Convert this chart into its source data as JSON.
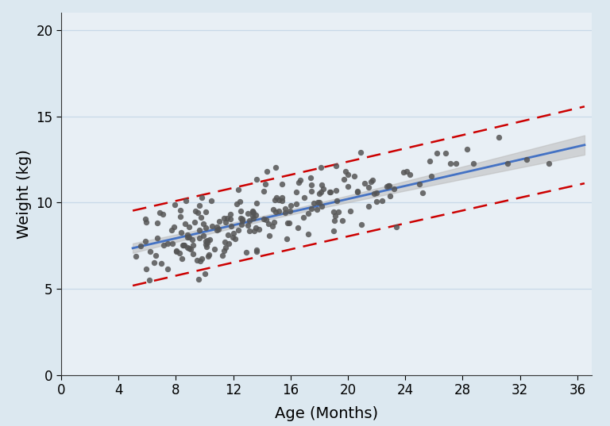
{
  "seed": 42,
  "n_points": 220,
  "age_min": 5.0,
  "age_max": 36.5,
  "intercept": 6.4,
  "slope": 0.19,
  "residual_std": 1.1,
  "ref_range_std": 1.96,
  "scatter_color": "#555555",
  "scatter_size": 28,
  "scatter_alpha": 0.85,
  "line_color": "#4472C4",
  "line_width": 2.0,
  "ci_color": "#bbbbbb",
  "ci_alpha": 0.55,
  "ref_color": "#CC0000",
  "ref_lw": 1.8,
  "ref_dash": [
    7,
    4
  ],
  "xlabel": "Age (Months)",
  "ylabel": "Weight (kg)",
  "xlim": [
    0,
    37
  ],
  "ylim": [
    0,
    21
  ],
  "xticks": [
    0,
    4,
    8,
    12,
    16,
    20,
    24,
    28,
    32,
    36
  ],
  "yticks": [
    0,
    5,
    10,
    15,
    20
  ],
  "grid_color": "#c8d8e8",
  "outer_bg": "#dce8f0",
  "plot_bg": "#e8eff5",
  "xlabel_fontsize": 14,
  "ylabel_fontsize": 14,
  "tick_fontsize": 12
}
